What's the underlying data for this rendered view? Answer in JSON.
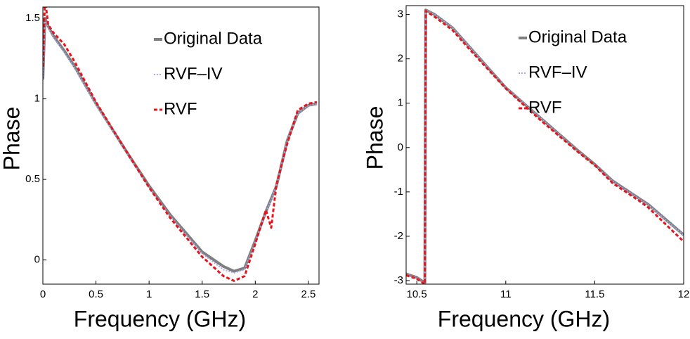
{
  "chart_data": [
    {
      "type": "line",
      "xlabel": "Frequency (GHz)",
      "ylabel": "Phase",
      "xlim": [
        0,
        2.6
      ],
      "ylim": [
        -0.15,
        1.57
      ],
      "xticks": [
        0,
        0.5,
        1,
        1.5,
        2,
        2.5
      ],
      "yticks": [
        0,
        0.5,
        1,
        1.5
      ],
      "legend": "upper right",
      "x": [
        0,
        0.02,
        0.05,
        0.1,
        0.2,
        0.3,
        0.5,
        0.8,
        1.0,
        1.2,
        1.5,
        1.7,
        1.8,
        1.9,
        2.0,
        2.1,
        2.15,
        2.2,
        2.3,
        2.4,
        2.5,
        2.58
      ],
      "series": [
        {
          "name": "Original Data",
          "color": "#7f7f7f",
          "linestyle": "solid",
          "linewidth": 4,
          "values": [
            1.12,
            1.5,
            1.45,
            1.39,
            1.3,
            1.2,
            0.97,
            0.66,
            0.46,
            0.28,
            0.05,
            -0.04,
            -0.07,
            -0.05,
            0.12,
            0.3,
            0.38,
            0.46,
            0.74,
            0.91,
            0.96,
            0.97
          ]
        },
        {
          "name": "RVF–IV",
          "color": "#a9a9e6",
          "linestyle": "dotted",
          "linewidth": 2,
          "values": [
            1.12,
            1.49,
            1.44,
            1.38,
            1.29,
            1.19,
            0.96,
            0.65,
            0.45,
            0.27,
            0.04,
            -0.06,
            -0.08,
            -0.06,
            0.11,
            0.3,
            0.37,
            0.46,
            0.74,
            0.91,
            0.96,
            0.97
          ]
        },
        {
          "name": "RVF",
          "color": "#e8141b",
          "linestyle": "dashed",
          "linewidth": 3,
          "values": [
            1.2,
            1.62,
            1.46,
            1.41,
            1.34,
            1.23,
            0.98,
            0.66,
            0.45,
            0.26,
            0.02,
            -0.1,
            -0.13,
            -0.1,
            0.1,
            0.31,
            0.2,
            0.47,
            0.72,
            0.93,
            0.97,
            0.98
          ]
        }
      ]
    },
    {
      "type": "line",
      "xlabel": "Frequency (GHz)",
      "ylabel": "Phase",
      "xlim": [
        10.44,
        12
      ],
      "ylim": [
        -3.08,
        3.2
      ],
      "xticks": [
        10.5,
        11,
        11.5,
        12
      ],
      "yticks": [
        -3,
        -2,
        -1,
        0,
        1,
        2,
        3
      ],
      "legend": "upper right",
      "x": [
        10.44,
        10.5,
        10.545,
        10.55,
        10.6,
        10.7,
        10.8,
        11,
        11.2,
        11.4,
        11.5,
        11.6,
        11.75,
        11.8,
        12
      ],
      "series": [
        {
          "name": "Original Data",
          "color": "#7f7f7f",
          "linestyle": "solid",
          "linewidth": 4,
          "values": [
            -2.85,
            -2.93,
            -3.05,
            3.1,
            3.0,
            2.7,
            2.25,
            1.35,
            0.65,
            -0.05,
            -0.38,
            -0.75,
            -1.15,
            -1.28,
            -1.97
          ]
        },
        {
          "name": "RVF–IV",
          "color": "#a9a9e6",
          "linestyle": "dotted",
          "linewidth": 2,
          "values": [
            -2.86,
            -2.94,
            -3.06,
            3.1,
            3.0,
            2.7,
            2.25,
            1.35,
            0.65,
            -0.06,
            -0.39,
            -0.76,
            -1.16,
            -1.29,
            -1.98
          ]
        },
        {
          "name": "RVF",
          "color": "#e8141b",
          "linestyle": "dashed",
          "linewidth": 3,
          "values": [
            -2.88,
            -2.96,
            -3.08,
            3.08,
            2.95,
            2.65,
            2.2,
            1.33,
            0.6,
            -0.08,
            -0.4,
            -0.8,
            -1.2,
            -1.35,
            -2.12
          ]
        }
      ]
    }
  ]
}
